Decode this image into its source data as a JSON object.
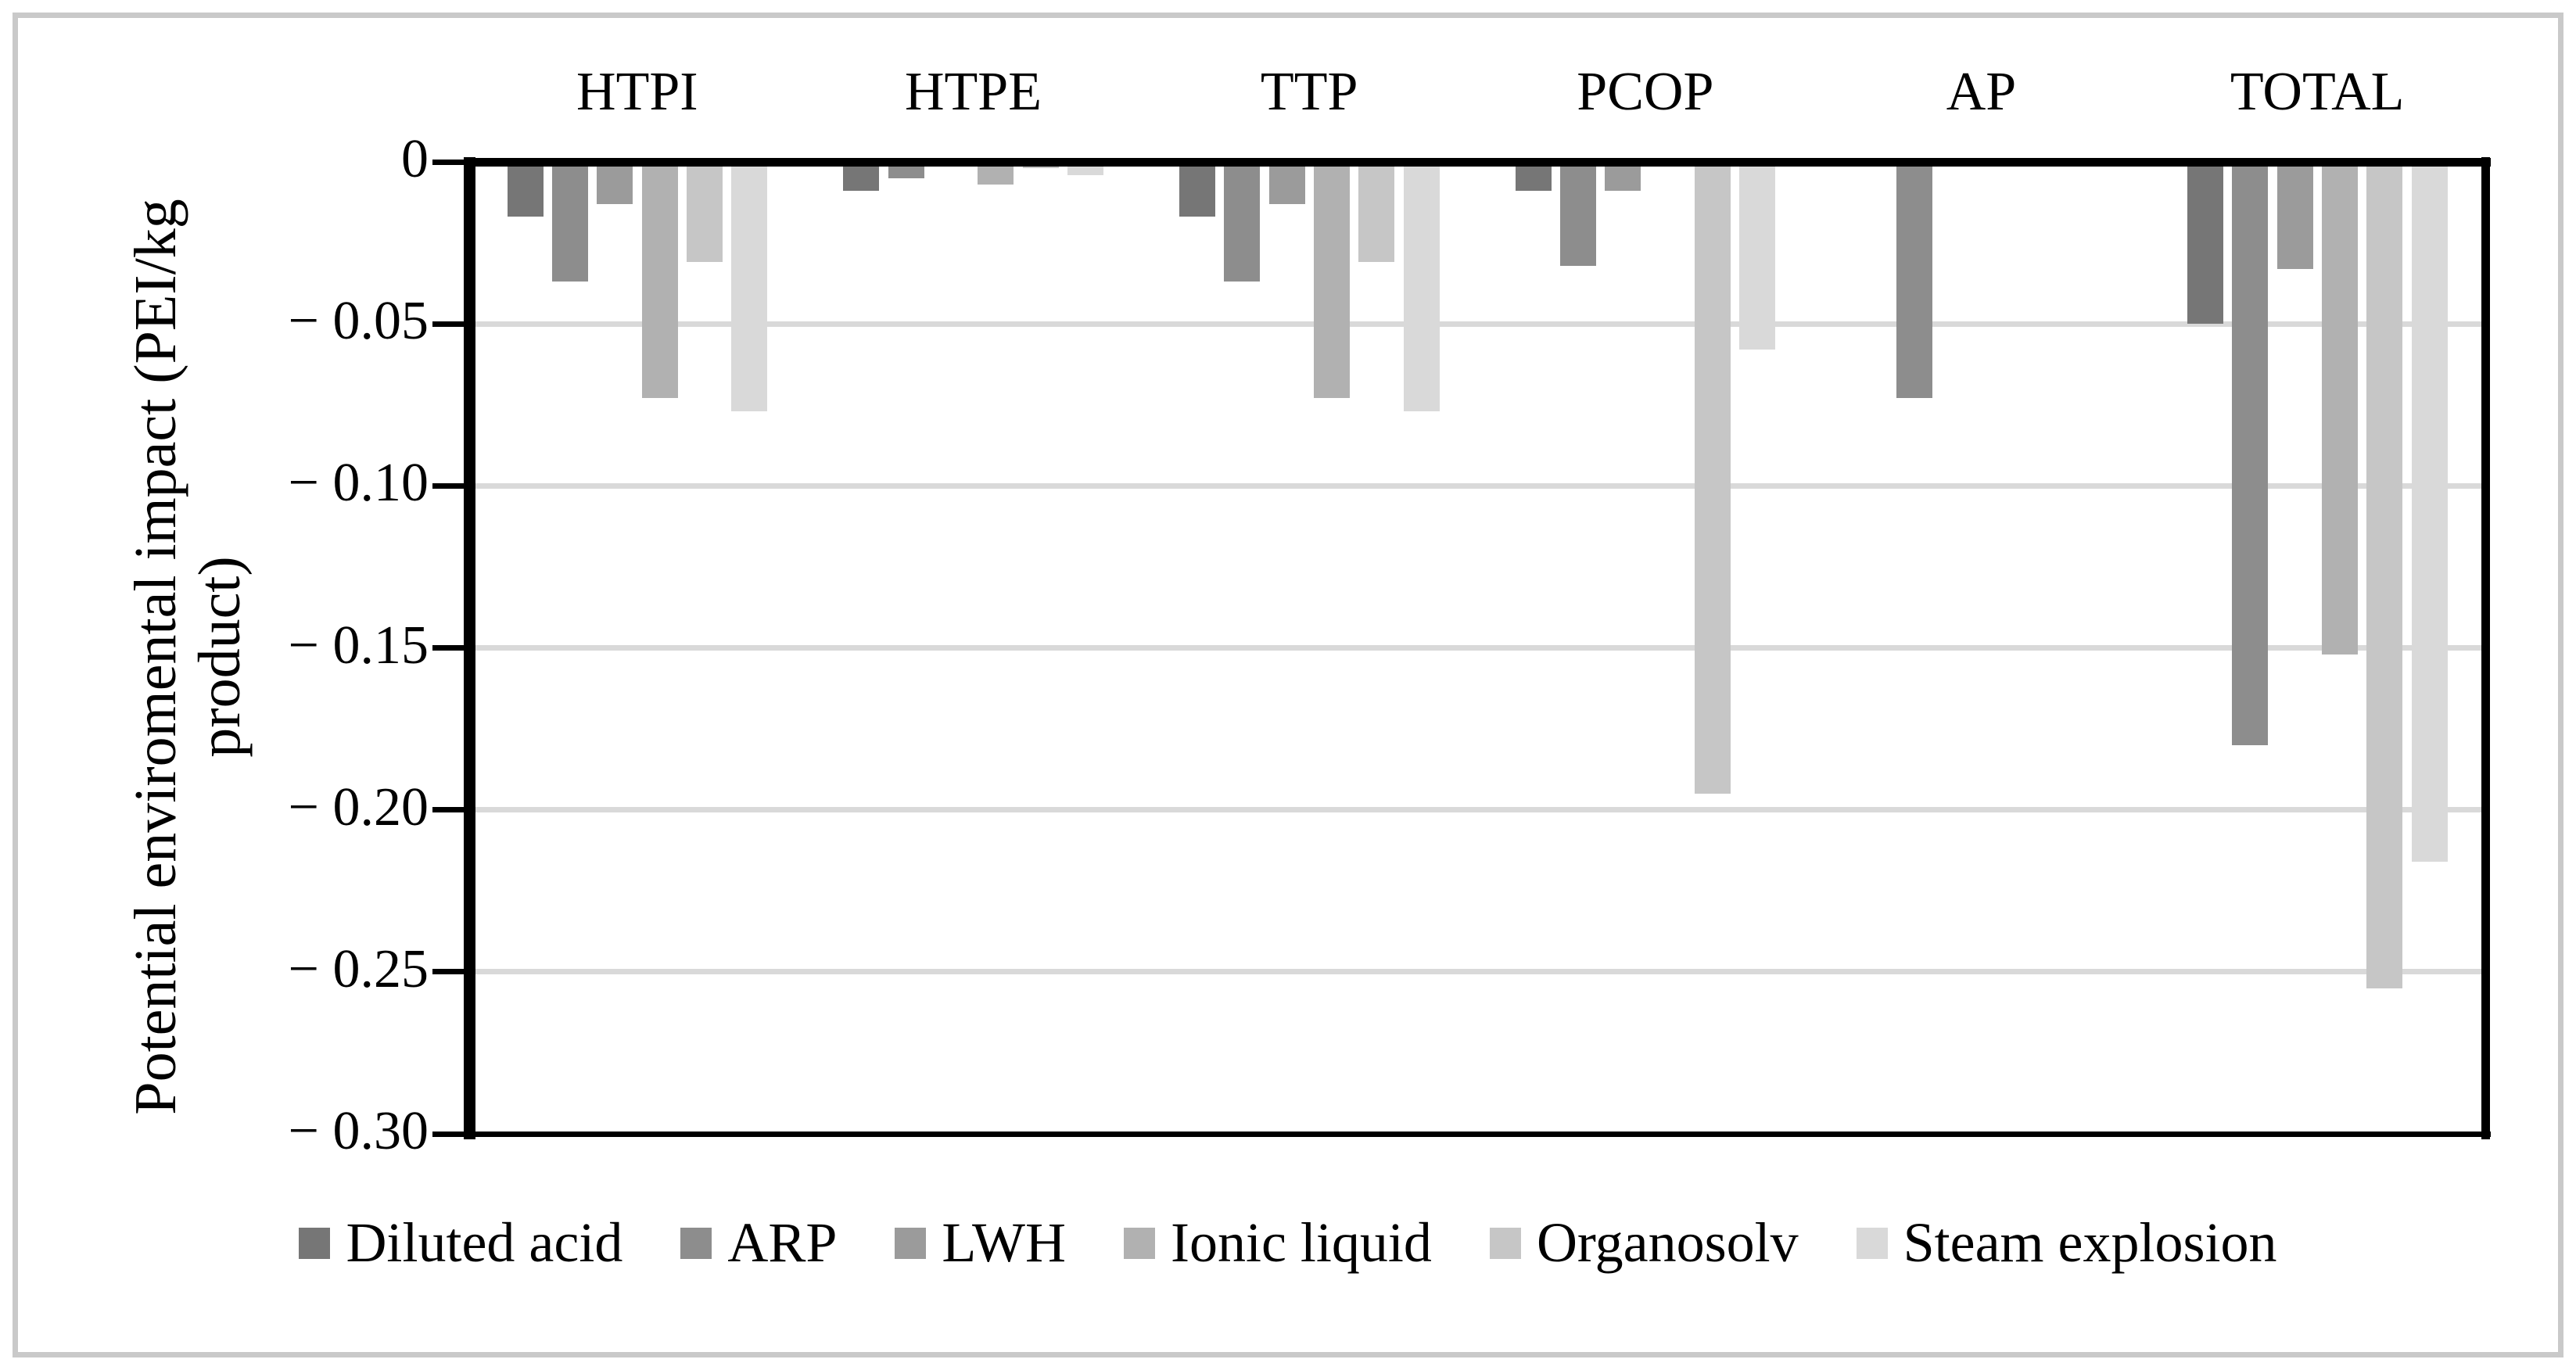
{
  "chart_data": {
    "type": "bar",
    "title": "",
    "ylabel": "Potential enviromental impact (PEI/kg product)",
    "ylabel_lines": [
      "Potential enviromental impact (PEI/kg",
      "product)"
    ],
    "categories": [
      "HTPI",
      "HTPE",
      "TTP",
      "PCOP",
      "AP",
      "TOTAL"
    ],
    "series": [
      {
        "name": "Diluted acid",
        "color": "#767676",
        "values": [
          -0.017,
          -0.009,
          -0.017,
          -0.009,
          0,
          -0.05
        ]
      },
      {
        "name": "ARP",
        "color": "#8d8d8d",
        "values": [
          -0.037,
          -0.005,
          -0.037,
          -0.032,
          -0.073,
          -0.18
        ]
      },
      {
        "name": "LWH",
        "color": "#9b9b9b",
        "values": [
          -0.013,
          -0.001,
          -0.013,
          -0.009,
          0,
          -0.033
        ]
      },
      {
        "name": "Ionic liquid",
        "color": "#b1b1b1",
        "values": [
          -0.073,
          -0.007,
          -0.073,
          0,
          0,
          -0.152
        ]
      },
      {
        "name": "Organosolv",
        "color": "#c6c6c6",
        "values": [
          -0.031,
          -0.002,
          -0.031,
          -0.195,
          0,
          -0.255
        ]
      },
      {
        "name": "Steam explosion",
        "color": "#d9d9d9",
        "values": [
          -0.077,
          -0.004,
          -0.077,
          -0.058,
          0,
          -0.216
        ]
      }
    ],
    "ylim": [
      -0.3,
      0
    ],
    "yticks": [
      0,
      -0.05,
      -0.1,
      -0.15,
      -0.2,
      -0.25,
      -0.3
    ],
    "ytick_labels": [
      "0",
      "− 0.05",
      "− 0.10",
      "− 0.15",
      "− 0.20",
      "− 0.25",
      "− 0.30"
    ],
    "grid": true,
    "legend_position": "bottom",
    "colors": {
      "gridline": "#d9d9d9",
      "axis": "#000000",
      "frame": "#c9c9c9",
      "background": "#ffffff"
    }
  }
}
